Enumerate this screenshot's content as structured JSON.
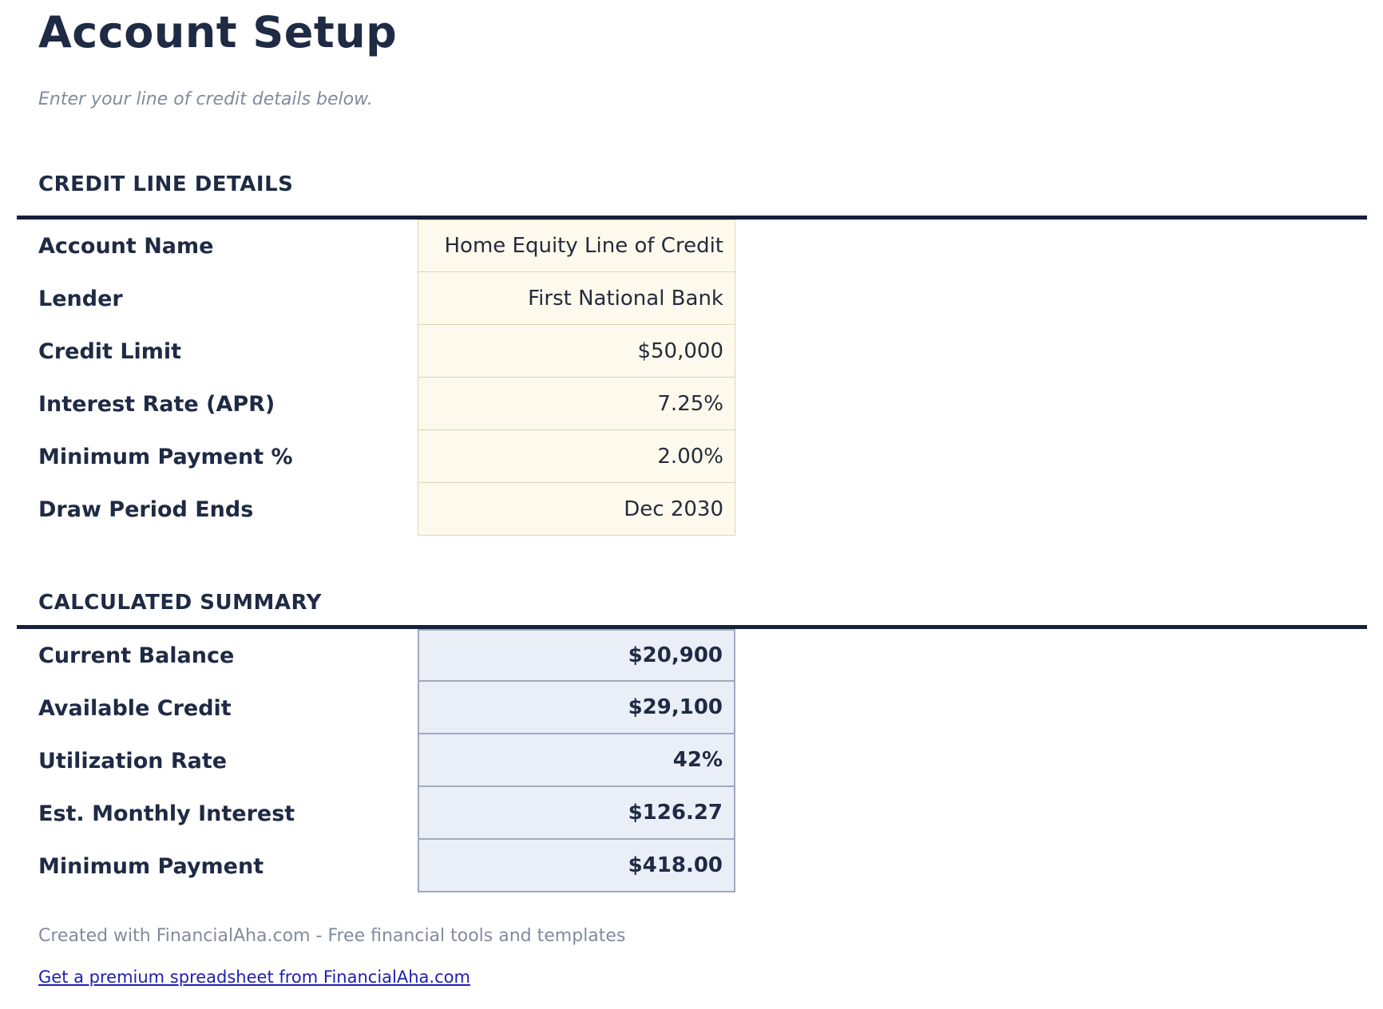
{
  "page": {
    "title": "Account Setup",
    "subtitle": "Enter your line of credit details below."
  },
  "credit_line_details": {
    "heading": "CREDIT LINE DETAILS",
    "rows": [
      {
        "label": "Account Name",
        "value": "Home Equity Line of Credit"
      },
      {
        "label": "Lender",
        "value": "First National Bank"
      },
      {
        "label": "Credit Limit",
        "value": "$50,000"
      },
      {
        "label": "Interest Rate (APR)",
        "value": "7.25%"
      },
      {
        "label": "Minimum Payment %",
        "value": "2.00%"
      },
      {
        "label": "Draw Period Ends",
        "value": "Dec 2030"
      }
    ]
  },
  "calculated_summary": {
    "heading": "CALCULATED SUMMARY",
    "rows": [
      {
        "label": "Current Balance",
        "value": "$20,900"
      },
      {
        "label": "Available Credit",
        "value": "$29,100"
      },
      {
        "label": "Utilization Rate",
        "value": "42%"
      },
      {
        "label": "Est. Monthly Interest",
        "value": "$126.27"
      },
      {
        "label": "Minimum Payment",
        "value": "$418.00"
      }
    ]
  },
  "footer": {
    "credit_text": "Created with FinancialAha.com - Free financial tools and templates",
    "link_text": "Get a premium spreadsheet from FinancialAha.com"
  },
  "colors": {
    "navy_text": "#1f2a44",
    "rule": "#152039",
    "muted_text": "#818b9e",
    "input_cell_bg": "#fdf9ec",
    "input_cell_border": "#ddd5b6",
    "summary_cell_bg": "#eaeef7",
    "summary_cell_border": "#a0a9c0",
    "value_text": "#252b3b",
    "link_color": "#1e1eb4"
  }
}
